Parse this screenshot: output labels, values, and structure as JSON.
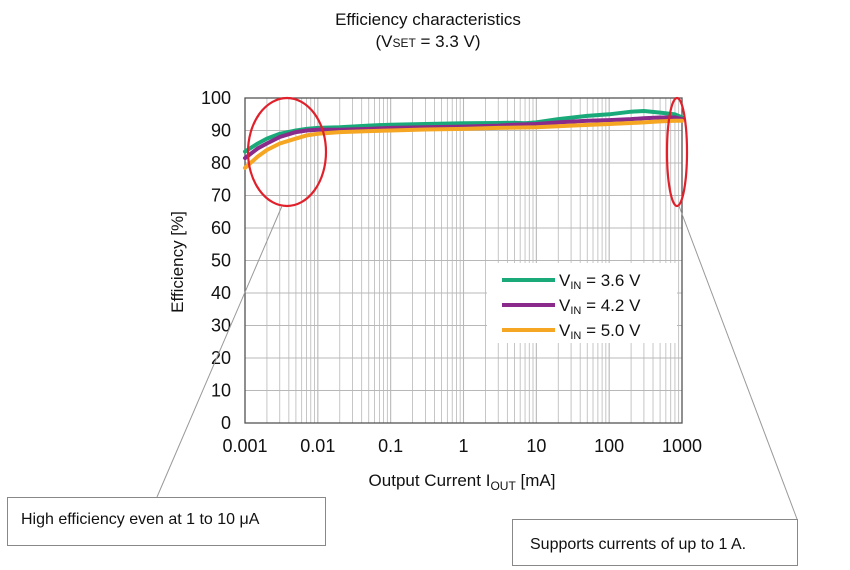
{
  "chart_data": {
    "type": "line",
    "title_line1": "Efficiency characteristics",
    "title_line2_prefix": "(V",
    "title_line2_sub": "SET",
    "title_line2_suffix": " = 3.3 V)",
    "xlabel_prefix": "Output  Current I",
    "xlabel_sub": "OUT",
    "xlabel_suffix": "  [mA]",
    "ylabel": "Efficiency [%]",
    "x_scale": "log",
    "xlim": [
      0.001,
      1000
    ],
    "ylim": [
      0,
      100
    ],
    "x_ticks": [
      "0.001",
      "0.01",
      "0.1",
      "1",
      "10",
      "100",
      "1000"
    ],
    "y_ticks": [
      "0",
      "10",
      "20",
      "30",
      "40",
      "50",
      "60",
      "70",
      "80",
      "90",
      "100"
    ],
    "grid": true,
    "legend_position": "lower-right",
    "series": [
      {
        "name_prefix": "V",
        "name_sub": "IN",
        "name_suffix": " = 3.6 V",
        "color": "#1aaa7a",
        "x": [
          0.001,
          0.0015,
          0.002,
          0.003,
          0.005,
          0.007,
          0.01,
          0.02,
          0.05,
          0.1,
          0.3,
          1,
          3,
          5,
          7,
          10,
          20,
          50,
          100,
          200,
          300,
          500,
          800,
          1000
        ],
        "y": [
          83.5,
          86,
          87.5,
          89,
          90,
          90.5,
          90.8,
          91,
          91.5,
          91.8,
          92,
          92.2,
          92.3,
          92.4,
          92.2,
          92.5,
          93.5,
          94.5,
          95,
          95.8,
          96,
          95.5,
          95,
          94
        ]
      },
      {
        "name_prefix": "V",
        "name_sub": "IN",
        "name_suffix": " = 4.2 V",
        "color": "#8a2a8a",
        "x": [
          0.001,
          0.0015,
          0.002,
          0.003,
          0.005,
          0.007,
          0.01,
          0.02,
          0.05,
          0.1,
          0.3,
          1,
          3,
          5,
          10,
          20,
          50,
          100,
          200,
          300,
          500,
          800,
          1000
        ],
        "y": [
          81.5,
          84.5,
          86,
          88,
          89.5,
          90,
          90.2,
          90.2,
          90.5,
          90.8,
          91,
          91.2,
          91.5,
          91.8,
          92,
          92.5,
          93,
          93.2,
          93.5,
          93.8,
          94,
          94,
          93.5
        ]
      },
      {
        "name_prefix": "V",
        "name_sub": "IN",
        "name_suffix": " = 5.0 V",
        "color": "#f5a623",
        "x": [
          0.001,
          0.0015,
          0.002,
          0.003,
          0.005,
          0.007,
          0.01,
          0.02,
          0.05,
          0.1,
          0.3,
          1,
          3,
          10,
          30,
          100,
          200,
          300,
          500,
          800,
          1000
        ],
        "y": [
          78.5,
          82,
          84,
          86,
          87.5,
          88.5,
          89,
          89.5,
          89.8,
          90,
          90.3,
          90.5,
          90.8,
          91,
          91.5,
          92,
          92.3,
          92.5,
          92.8,
          93,
          93
        ]
      }
    ]
  },
  "callouts": {
    "left_text": "High efficiency even at 1 to 10 μA",
    "right_text": "Supports currents of up to 1 A."
  },
  "colors": {
    "highlight_ellipse": "#e0202a",
    "grid": "#b8b8b8",
    "plot_border": "#555555",
    "leader_line": "#999999"
  }
}
